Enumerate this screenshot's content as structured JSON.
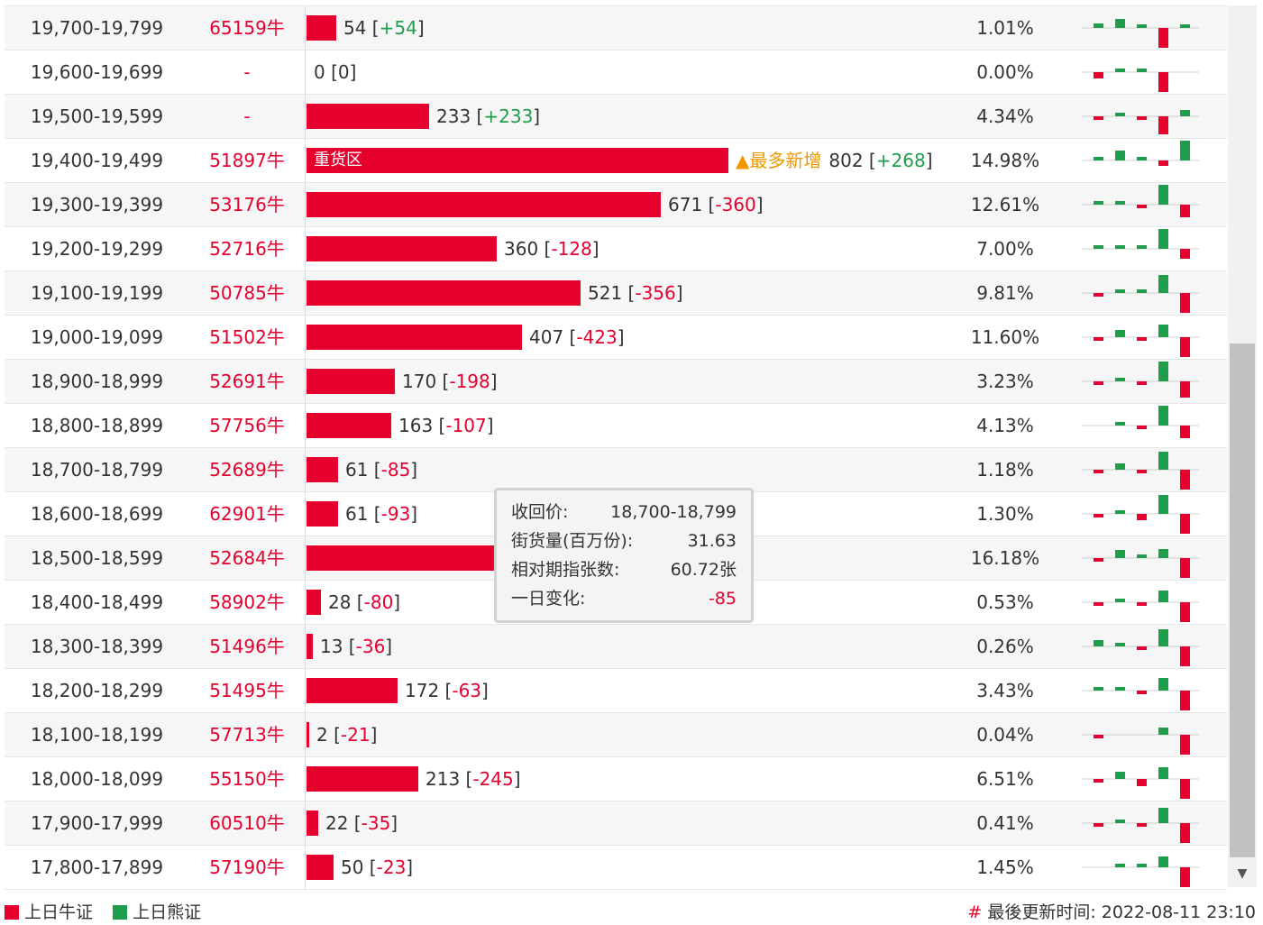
{
  "colors": {
    "bull": "#e5002e",
    "bear": "#1e9e4b",
    "highlight": "#f09600"
  },
  "rows": [
    {
      "range": "19,700-19,799",
      "call": "65159牛",
      "bar": 0.07,
      "qty": "54",
      "chg": "+54",
      "pct": "1.01%",
      "spark": [
        [
          0,
          0.22
        ],
        [
          0,
          0.45
        ],
        [
          0,
          0.12
        ],
        [
          1,
          1.0
        ],
        [
          0,
          0.2
        ]
      ]
    },
    {
      "range": "19,600-19,699",
      "call": "-",
      "bar": 0,
      "qty": "0",
      "chg": "0",
      "pct": "0.00%",
      "spark": [
        [
          1,
          0.3
        ],
        [
          0,
          0.18
        ],
        [
          0,
          0.1
        ],
        [
          1,
          1.0
        ],
        [
          0,
          0
        ]
      ]
    },
    {
      "range": "19,500-19,599",
      "call": "-",
      "bar": 0.29,
      "qty": "233",
      "chg": "+233",
      "pct": "4.34%",
      "spark": [
        [
          1,
          0.1
        ],
        [
          0,
          0.18
        ],
        [
          1,
          0.1
        ],
        [
          1,
          0.9
        ],
        [
          0,
          0.3
        ]
      ]
    },
    {
      "range": "19,400-19,499",
      "call": "51897牛",
      "bar": 1.0,
      "label": "重货区",
      "hot": "▲最多新增",
      "qty": "802",
      "chg": "+268",
      "pct": "14.98%",
      "spark": [
        [
          0,
          0.15
        ],
        [
          0,
          0.5
        ],
        [
          0,
          0.1
        ],
        [
          1,
          0.25
        ],
        [
          0,
          1.0
        ]
      ]
    },
    {
      "range": "19,300-19,399",
      "call": "53176牛",
      "bar": 0.84,
      "qty": "671",
      "chg": "-360",
      "pct": "12.61%",
      "spark": [
        [
          0,
          0.1
        ],
        [
          0,
          0.15
        ],
        [
          1,
          0.1
        ],
        [
          0,
          1.0
        ],
        [
          1,
          0.65
        ]
      ]
    },
    {
      "range": "19,200-19,299",
      "call": "52716牛",
      "bar": 0.45,
      "qty": "360",
      "chg": "-128",
      "pct": "7.00%",
      "spark": [
        [
          0,
          0.1
        ],
        [
          0,
          0.15
        ],
        [
          0,
          0.1
        ],
        [
          0,
          1.0
        ],
        [
          1,
          0.5
        ]
      ]
    },
    {
      "range": "19,100-19,199",
      "call": "50785牛",
      "bar": 0.65,
      "qty": "521",
      "chg": "-356",
      "pct": "9.81%",
      "spark": [
        [
          1,
          0.08
        ],
        [
          0,
          0.1
        ],
        [
          0,
          0.08
        ],
        [
          0,
          0.9
        ],
        [
          1,
          1.0
        ]
      ]
    },
    {
      "range": "19,000-19,099",
      "call": "51502牛",
      "bar": 0.51,
      "qty": "407",
      "chg": "-423",
      "pct": "11.60%",
      "spark": [
        [
          1,
          0.1
        ],
        [
          0,
          0.35
        ],
        [
          1,
          0.1
        ],
        [
          0,
          0.65
        ],
        [
          1,
          1.0
        ]
      ]
    },
    {
      "range": "18,900-18,999",
      "call": "52691牛",
      "bar": 0.21,
      "qty": "170",
      "chg": "-198",
      "pct": "3.23%",
      "spark": [
        [
          1,
          0.08
        ],
        [
          0,
          0.1
        ],
        [
          1,
          0.08
        ],
        [
          0,
          1.0
        ],
        [
          1,
          0.8
        ]
      ]
    },
    {
      "range": "18,800-18,899",
      "call": "57756牛",
      "bar": 0.2,
      "qty": "163",
      "chg": "-107",
      "pct": "4.13%",
      "spark": [
        [
          0,
          0
        ],
        [
          0,
          0.1
        ],
        [
          1,
          0.2
        ],
        [
          0,
          1.0
        ],
        [
          1,
          0.65
        ]
      ]
    },
    {
      "range": "18,700-18,799",
      "call": "52689牛",
      "bar": 0.075,
      "qty": "61",
      "chg": "-85",
      "pct": "1.18%",
      "spark": [
        [
          1,
          0.1
        ],
        [
          0,
          0.3
        ],
        [
          1,
          0.15
        ],
        [
          0,
          0.9
        ],
        [
          1,
          1.0
        ]
      ]
    },
    {
      "range": "18,600-18,699",
      "call": "62901牛",
      "bar": 0.075,
      "qty": "61",
      "chg": "-93",
      "pct": "1.30%",
      "spark": [
        [
          1,
          0.08
        ],
        [
          0,
          0.15
        ],
        [
          1,
          0.3
        ],
        [
          0,
          0.95
        ],
        [
          1,
          1.0
        ]
      ]
    },
    {
      "range": "18,500-18,599",
      "call": "52684牛",
      "bar": 0.45,
      "qty": "",
      "chg": "",
      "pct": "16.18%",
      "spark": [
        [
          1,
          0.15
        ],
        [
          0,
          0.4
        ],
        [
          0,
          0.1
        ],
        [
          0,
          0.45
        ],
        [
          1,
          1.0
        ]
      ]
    },
    {
      "range": "18,400-18,499",
      "call": "58902牛",
      "bar": 0.035,
      "qty": "28",
      "chg": "-80",
      "pct": "0.53%",
      "spark": [
        [
          1,
          0.08
        ],
        [
          0,
          0.08
        ],
        [
          1,
          0.08
        ],
        [
          0,
          0.6
        ],
        [
          1,
          1.0
        ]
      ]
    },
    {
      "range": "18,300-18,399",
      "call": "51496牛",
      "bar": 0.016,
      "qty": "13",
      "chg": "-36",
      "pct": "0.26%",
      "spark": [
        [
          0,
          0.3
        ],
        [
          0,
          0.08
        ],
        [
          1,
          0.1
        ],
        [
          0,
          0.85
        ],
        [
          1,
          1.0
        ]
      ]
    },
    {
      "range": "18,200-18,299",
      "call": "51495牛",
      "bar": 0.215,
      "qty": "172",
      "chg": "-63",
      "pct": "3.43%",
      "spark": [
        [
          0,
          0.08
        ],
        [
          0,
          0.2
        ],
        [
          1,
          0.15
        ],
        [
          0,
          0.65
        ],
        [
          1,
          1.0
        ]
      ]
    },
    {
      "range": "18,100-18,199",
      "call": "57713牛",
      "bar": 0.006,
      "qty": "2",
      "chg": "-21",
      "pct": "0.04%",
      "spark": [
        [
          1,
          0.1
        ],
        [
          0,
          0
        ],
        [
          0,
          0
        ],
        [
          0,
          0.35
        ],
        [
          1,
          1.0
        ]
      ]
    },
    {
      "range": "18,000-18,099",
      "call": "55150牛",
      "bar": 0.265,
      "qty": "213",
      "chg": "-245",
      "pct": "6.51%",
      "spark": [
        [
          1,
          0.08
        ],
        [
          0,
          0.35
        ],
        [
          1,
          0.35
        ],
        [
          0,
          0.6
        ],
        [
          1,
          1.0
        ]
      ]
    },
    {
      "range": "17,900-17,999",
      "call": "60510牛",
      "bar": 0.028,
      "qty": "22",
      "chg": "-35",
      "pct": "0.41%",
      "spark": [
        [
          1,
          0.08
        ],
        [
          0,
          0.15
        ],
        [
          1,
          0.15
        ],
        [
          0,
          0.75
        ],
        [
          1,
          1.0
        ]
      ]
    },
    {
      "range": "17,800-17,899",
      "call": "57190牛",
      "bar": 0.064,
      "qty": "50",
      "chg": "-23",
      "pct": "1.45%",
      "spark": [
        [
          0,
          0
        ],
        [
          0,
          0.2
        ],
        [
          0,
          0.1
        ],
        [
          0,
          0.55
        ],
        [
          1,
          1.0
        ]
      ]
    }
  ],
  "tooltip": {
    "k1": "收回价:",
    "v1": "18,700-18,799",
    "k2": "街货量(百万份):",
    "v2": "31.63",
    "k3": "相对期指张数:",
    "v3": "60.72张",
    "k4": "一日变化:",
    "v4": "-85"
  },
  "legend": {
    "bull": "上日牛证",
    "bear": "上日熊证"
  },
  "updated": {
    "hash": "#",
    "text": "最後更新时间: 2022-08-11 23:10"
  },
  "scroll": {
    "down_icon": "▼"
  }
}
